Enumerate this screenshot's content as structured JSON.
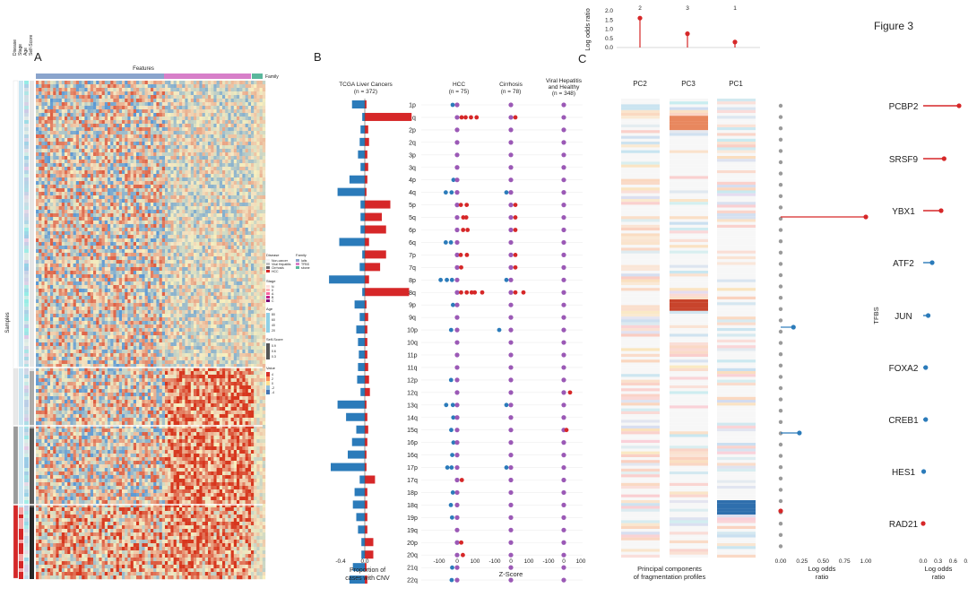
{
  "figure_title": "Figure 3",
  "colors": {
    "red": "#d62728",
    "blue": "#2b7bba",
    "purple": "#9b59b6",
    "grey": "#9a9a9a"
  },
  "panel_a": {
    "letter": "A",
    "features_label": "Features",
    "family_label": "Family",
    "samples_label": "Samples",
    "side_labels": [
      "Disease",
      "Stage",
      "Age",
      "Self-Score"
    ],
    "legend": {
      "disease_title": "Disease",
      "disease_items": [
        "Non-cancer",
        "Viral Hepatitis",
        "Cirrhosis",
        "HCC"
      ],
      "family_title": "Family",
      "family_items": [
        "Ialts",
        "TFBS",
        "sbone"
      ],
      "stage_title": "Stage",
      "stage_items": [
        "N",
        "0",
        "A",
        "B",
        "C"
      ],
      "age_title": "Age",
      "age_ticks": [
        "80",
        "60",
        "40",
        "20"
      ],
      "score_title": "Self-Score",
      "score_ticks": [
        "0.9",
        "0.6",
        "0.3"
      ],
      "value_title": "Value",
      "value_ticks": [
        "4",
        "2",
        "0",
        "-2",
        "-4"
      ]
    }
  },
  "panel_b": {
    "letter": "B",
    "col_titles": [
      "TCGA Liver Cancers",
      "(n = 372)",
      "HCC",
      "(n = 75)",
      "Cirrhosis",
      "(n = 78)",
      "Viral Hepatitis",
      "and Healthy",
      "(n = 348)"
    ],
    "arms": [
      "1p",
      "1q",
      "2p",
      "2q",
      "3p",
      "3q",
      "4p",
      "4q",
      "5p",
      "5q",
      "6p",
      "6q",
      "7p",
      "7q",
      "8p",
      "8q",
      "9p",
      "9q",
      "10p",
      "10q",
      "11p",
      "11q",
      "12p",
      "12q",
      "13q",
      "14q",
      "15q",
      "16p",
      "16q",
      "17p",
      "17q",
      "18p",
      "18q",
      "19p",
      "19q",
      "20p",
      "20q",
      "21q",
      "22q"
    ],
    "x_label_left": [
      "Proportion of",
      "cases with CNV"
    ],
    "x_ticks_left": [
      "-0.4",
      "0.0"
    ],
    "x_label_right": "Z-Score",
    "x_ticks_right": [
      "-100",
      "0",
      "100",
      "-100",
      "0",
      "100",
      "-100",
      "0",
      "100"
    ]
  },
  "panel_c": {
    "letter": "C",
    "pc_labels": [
      "PC2",
      "PC3",
      "PC1"
    ],
    "x_label": [
      "Principal components",
      "of fragmentation profiles"
    ],
    "odds_ticks": [
      "0.00",
      "0.25",
      "0.50",
      "0.75",
      "1.00"
    ],
    "odds_label": [
      "Log odds",
      "ratio"
    ],
    "top_ylabel": "Log odds ratio",
    "top_yticks": [
      "2.0",
      "1.5",
      "1.0",
      "0.5",
      "0.0"
    ],
    "top_xlabels": [
      "2",
      "3",
      "1"
    ],
    "tfbs_title": "TFBS",
    "tfbs_ticks": [
      "0.0",
      "0.3",
      "0.6",
      "0.9"
    ],
    "tfbs_label": [
      "Log odds",
      "ratio"
    ]
  },
  "chart_data": [
    {
      "type": "line",
      "title": "Log odds ratio by PC",
      "categories": [
        "2",
        "3",
        "1"
      ],
      "values": [
        1.6,
        0.75,
        0.3
      ],
      "ylim": [
        0,
        2.0
      ],
      "ylabel": "Log odds ratio"
    },
    {
      "type": "bar",
      "title": "TFBS log odds ratio",
      "categories": [
        "PCBP2",
        "SRSF9",
        "YBX1",
        "ATF2",
        "JUN",
        "FOXA2",
        "CREB1",
        "HES1",
        "RAD21"
      ],
      "values": [
        0.72,
        0.42,
        0.36,
        0.18,
        0.1,
        0.05,
        0.05,
        0.01,
        0.0
      ],
      "series_color": [
        "red",
        "red",
        "red",
        "blue",
        "blue",
        "blue",
        "blue",
        "blue",
        "red"
      ],
      "xlim": [
        0,
        0.9
      ],
      "xlabel": "Log odds ratio",
      "ylabel": "TFBS"
    },
    {
      "type": "bar",
      "title": "Proportion of cases with CNV (TCGA Liver Cancers, n = 372)",
      "categories": [
        "1p",
        "1q",
        "2p",
        "2q",
        "3p",
        "3q",
        "4p",
        "4q",
        "5p",
        "5q",
        "6p",
        "6q",
        "7p",
        "7q",
        "8p",
        "8q",
        "9p",
        "9q",
        "10p",
        "10q",
        "11p",
        "11q",
        "12p",
        "12q",
        "13q",
        "14q",
        "15q",
        "16p",
        "16q",
        "17p",
        "17q",
        "18p",
        "18q",
        "19p",
        "19q",
        "20p",
        "20q",
        "21q",
        "22q"
      ],
      "gain": [
        0.02,
        0.55,
        0.04,
        0.05,
        0.03,
        0.04,
        0.03,
        0.02,
        0.3,
        0.2,
        0.25,
        0.05,
        0.25,
        0.18,
        0.05,
        0.52,
        0.02,
        0.04,
        0.03,
        0.03,
        0.03,
        0.04,
        0.05,
        0.06,
        0.02,
        0.03,
        0.04,
        0.03,
        0.02,
        0.02,
        0.12,
        0.03,
        0.03,
        0.03,
        0.03,
        0.1,
        0.1,
        0.02,
        0.03
      ],
      "loss": [
        0.15,
        0.03,
        0.05,
        0.06,
        0.08,
        0.05,
        0.18,
        0.32,
        0.05,
        0.05,
        0.05,
        0.3,
        0.03,
        0.06,
        0.42,
        0.03,
        0.12,
        0.06,
        0.1,
        0.08,
        0.07,
        0.08,
        0.09,
        0.05,
        0.32,
        0.22,
        0.1,
        0.15,
        0.2,
        0.4,
        0.06,
        0.12,
        0.14,
        0.1,
        0.08,
        0.04,
        0.04,
        0.14,
        0.18
      ],
      "xlim": [
        -0.5,
        0.6
      ]
    },
    {
      "type": "scatter",
      "title": "Z-Score HCC (n = 75)",
      "arms": [
        "1p",
        "1q",
        "2p",
        "2q",
        "3p",
        "3q",
        "4p",
        "4q",
        "5p",
        "5q",
        "6p",
        "6q",
        "7p",
        "7q",
        "8p",
        "8q",
        "9p",
        "9q",
        "10p",
        "10q",
        "11p",
        "11q",
        "12p",
        "12q",
        "13q",
        "14q",
        "15q",
        "16p",
        "16q",
        "17p",
        "17q",
        "18p",
        "18q",
        "19p",
        "19q",
        "20p",
        "20q",
        "21q",
        "22q"
      ],
      "xlim": [
        -130,
        150
      ]
    }
  ]
}
